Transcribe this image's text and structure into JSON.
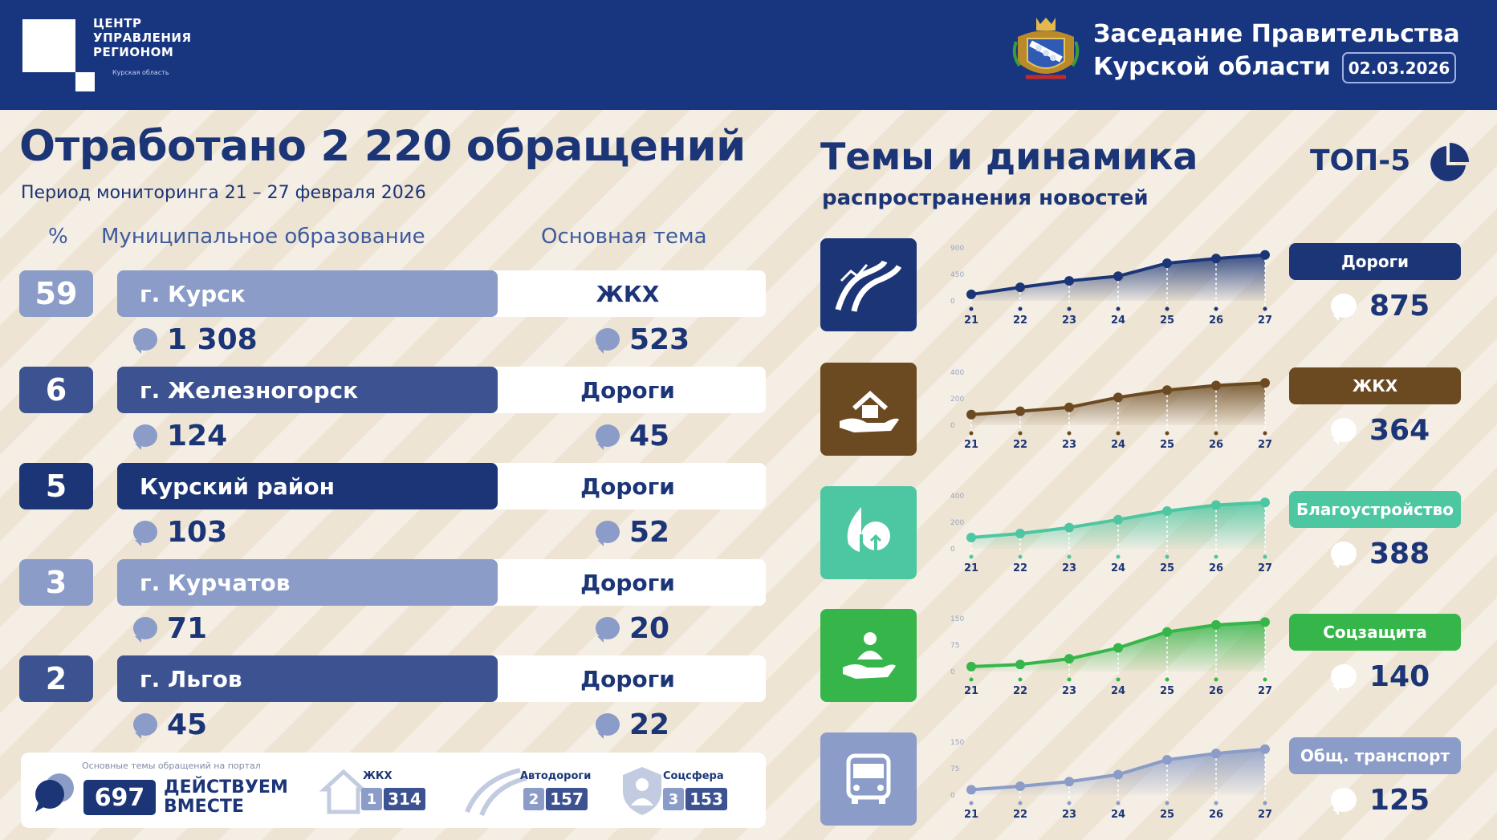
{
  "header": {
    "org_line1": "ЦЕНТР",
    "org_line2": "УПРАВЛЕНИЯ",
    "org_line3": "РЕГИОНОМ",
    "org_sub": "Курская область",
    "title_line1": "Заседание Правительства",
    "title_line2": "Курской области",
    "date": "02.03.2026",
    "colors": {
      "background": "#183680"
    }
  },
  "left": {
    "title": "Отработано 2 220 обращений",
    "period": "Период мониторинга 21 – 27 февраля 2026",
    "col_pct": "%",
    "col_muni": "Муниципальное образование",
    "col_topic": "Основная тема",
    "rows": [
      {
        "pct": "59",
        "muni": "г. Курск",
        "total": "1 308",
        "topic": "ЖКХ",
        "topic_count": "523",
        "color": "#8a9cc7"
      },
      {
        "pct": "6",
        "muni": "г. Железногорск",
        "total": "124",
        "topic": "Дороги",
        "topic_count": "45",
        "color": "#3c5291"
      },
      {
        "pct": "5",
        "muni": "Курский район",
        "total": "103",
        "topic": "Дороги",
        "topic_count": "52",
        "color": "#1b3577"
      },
      {
        "pct": "3",
        "muni": "г. Курчатов",
        "total": "71",
        "topic": "Дороги",
        "topic_count": "20",
        "color": "#8a9cc7"
      },
      {
        "pct": "2",
        "muni": "г. Льгов",
        "total": "45",
        "topic": "Дороги",
        "topic_count": "22",
        "color": "#3c5291"
      }
    ],
    "portal": {
      "caption": "Основные темы обращений на портал",
      "count": "697",
      "name_line1": "ДЕЙСТВУЕМ",
      "name_line2": "ВМЕСТЕ",
      "items": [
        {
          "label": "ЖКХ",
          "rank": "1",
          "value": "314",
          "icon": "house-icon"
        },
        {
          "label": "Автодороги",
          "rank": "2",
          "value": "157",
          "icon": "road-icon"
        },
        {
          "label": "Соцсфера",
          "rank": "3",
          "value": "153",
          "icon": "shield-person-icon"
        }
      ]
    }
  },
  "right": {
    "title": "Темы и динамика",
    "subtitle": "распространения новостей",
    "top_label": "ТОП-5",
    "topics": [
      {
        "name": "Дороги",
        "value": "875",
        "icon": "road-icon",
        "color": "#1b3577",
        "badge_color": "#1b3577",
        "y_ticks": [
          "0",
          "450",
          "900"
        ],
        "y_max": 900,
        "x": [
          "21",
          "22",
          "23",
          "24",
          "25",
          "26",
          "27"
        ],
        "series": [
          110,
          230,
          340,
          420,
          640,
          720,
          780
        ]
      },
      {
        "name": "ЖКХ",
        "value": "364",
        "icon": "house-hand-icon",
        "color": "#6b4a22",
        "badge_color": "#6b4a22",
        "y_ticks": [
          "0",
          "200",
          "400"
        ],
        "y_max": 400,
        "x": [
          "21",
          "22",
          "23",
          "24",
          "25",
          "26",
          "27"
        ],
        "series": [
          80,
          105,
          135,
          210,
          265,
          300,
          320
        ]
      },
      {
        "name": "Благоустройство",
        "value": "388",
        "icon": "tree-icon",
        "color": "#4cc7a1",
        "badge_color": "#4cc7a1",
        "y_ticks": [
          "0",
          "200",
          "400"
        ],
        "y_max": 400,
        "x": [
          "21",
          "22",
          "23",
          "24",
          "25",
          "26",
          "27"
        ],
        "series": [
          85,
          115,
          160,
          220,
          285,
          330,
          350
        ]
      },
      {
        "name": "Соцзащита",
        "value": "140",
        "icon": "hand-person-icon",
        "color": "#36b64a",
        "badge_color": "#36b64a",
        "y_ticks": [
          "0",
          "75",
          "150"
        ],
        "y_max": 150,
        "x": [
          "21",
          "22",
          "23",
          "24",
          "25",
          "26",
          "27"
        ],
        "series": [
          14,
          20,
          36,
          67,
          112,
          132,
          140
        ]
      },
      {
        "name": "Общ. транспорт",
        "value": "125",
        "icon": "bus-icon",
        "color": "#8a9cc7",
        "badge_color": "#8a9cc7",
        "y_ticks": [
          "0",
          "75",
          "150"
        ],
        "y_max": 150,
        "x": [
          "21",
          "22",
          "23",
          "24",
          "25",
          "26",
          "27"
        ],
        "series": [
          15,
          25,
          38,
          58,
          100,
          118,
          130
        ]
      }
    ]
  }
}
